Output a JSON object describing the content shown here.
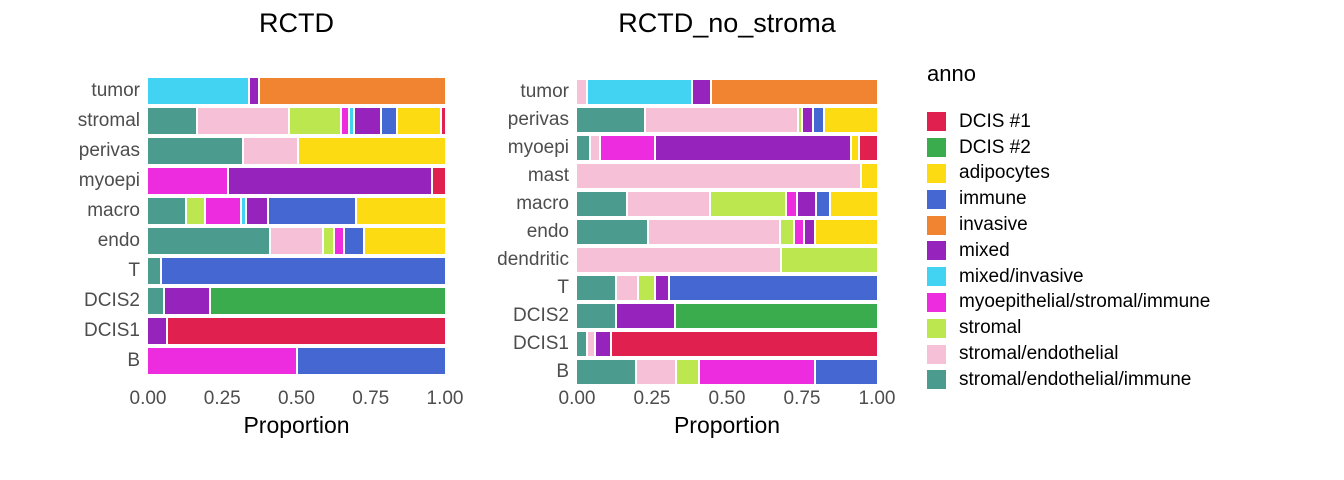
{
  "page": {
    "background": "#FFFFFF"
  },
  "colors": {
    "DCIS #1": "#E0214F",
    "DCIS #2": "#3BAC4D",
    "adipocytes": "#FDDB13",
    "immune": "#4467D2",
    "invasive": "#F18431",
    "mixed": "#9623BC",
    "mixed/invasive": "#43D3F2",
    "myoepithelial/stromal/immune": "#ED2CE0",
    "stromal": "#BCE74E",
    "stromal/endothelial": "#F6C1D6",
    "stromal/endothelial/immune": "#4C9B8F"
  },
  "legend": {
    "title": "anno",
    "items": [
      {
        "label": "DCIS #1",
        "color": "#E0214F"
      },
      {
        "label": "DCIS #2",
        "color": "#3BAC4D"
      },
      {
        "label": "adipocytes",
        "color": "#FDDB13"
      },
      {
        "label": "immune",
        "color": "#4467D2"
      },
      {
        "label": "invasive",
        "color": "#F18431"
      },
      {
        "label": "mixed",
        "color": "#9623BC"
      },
      {
        "label": "mixed/invasive",
        "color": "#43D3F2"
      },
      {
        "label": "myoepithelial/stromal/immune",
        "color": "#ED2CE0"
      },
      {
        "label": "stromal",
        "color": "#BCE74E"
      },
      {
        "label": "stromal/endothelial",
        "color": "#F6C1D6"
      },
      {
        "label": "stromal/endothelial/immune",
        "color": "#4C9B8F"
      }
    ]
  },
  "chart_data": [
    {
      "type": "stacked_bar_horizontal",
      "title": "RCTD",
      "xlabel": "Proportion",
      "xlim": [
        0,
        1
      ],
      "x_tick_values": [
        0,
        0.25,
        0.5,
        0.75,
        1
      ],
      "x_tick_labels": [
        "0.00",
        "0.25",
        "0.50",
        "0.75",
        "1.00"
      ],
      "categories": [
        "tumor",
        "stromal",
        "perivas",
        "myoepi",
        "macro",
        "endo",
        "T",
        "DCIS2",
        "DCIS1",
        "B"
      ],
      "rows": [
        {
          "label": "tumor",
          "segments": [
            {
              "anno": "mixed/invasive",
              "value": 0.34
            },
            {
              "anno": "mixed",
              "value": 0.03
            },
            {
              "anno": "invasive",
              "value": 0.63
            }
          ]
        },
        {
          "label": "stromal",
          "segments": [
            {
              "anno": "stromal/endothelial/immune",
              "value": 0.17
            },
            {
              "anno": "stromal/endothelial",
              "value": 0.32
            },
            {
              "anno": "stromal",
              "value": 0.18
            },
            {
              "anno": "myoepithelial/stromal/immune",
              "value": 0.02
            },
            {
              "anno": "mixed/invasive",
              "value": 0.01
            },
            {
              "anno": "mixed",
              "value": 0.09
            },
            {
              "anno": "immune",
              "value": 0.05
            },
            {
              "anno": "adipocytes",
              "value": 0.15
            },
            {
              "anno": "DCIS #1",
              "value": 0.01
            }
          ]
        },
        {
          "label": "perivas",
          "segments": [
            {
              "anno": "stromal/endothelial/immune",
              "value": 0.32
            },
            {
              "anno": "stromal/endothelial",
              "value": 0.18
            },
            {
              "anno": "adipocytes",
              "value": 0.5
            }
          ]
        },
        {
          "label": "myoepi",
          "segments": [
            {
              "anno": "myoepithelial/stromal/immune",
              "value": 0.27
            },
            {
              "anno": "mixed",
              "value": 0.69
            },
            {
              "anno": "DCIS #1",
              "value": 0.04
            }
          ]
        },
        {
          "label": "macro",
          "segments": [
            {
              "anno": "stromal/endothelial/immune",
              "value": 0.13
            },
            {
              "anno": "stromal",
              "value": 0.06
            },
            {
              "anno": "myoepithelial/stromal/immune",
              "value": 0.12
            },
            {
              "anno": "mixed/invasive",
              "value": 0.01
            },
            {
              "anno": "mixed",
              "value": 0.07
            },
            {
              "anno": "immune",
              "value": 0.3
            },
            {
              "anno": "adipocytes",
              "value": 0.31
            }
          ]
        },
        {
          "label": "endo",
          "segments": [
            {
              "anno": "stromal/endothelial/immune",
              "value": 0.42
            },
            {
              "anno": "stromal/endothelial",
              "value": 0.18
            },
            {
              "anno": "stromal",
              "value": 0.03
            },
            {
              "anno": "myoepithelial/stromal/immune",
              "value": 0.03
            },
            {
              "anno": "immune",
              "value": 0.06
            },
            {
              "anno": "adipocytes",
              "value": 0.28
            }
          ]
        },
        {
          "label": "T",
          "segments": [
            {
              "anno": "stromal/endothelial/immune",
              "value": 0.04
            },
            {
              "anno": "immune",
              "value": 0.96
            }
          ]
        },
        {
          "label": "DCIS2",
          "segments": [
            {
              "anno": "stromal/endothelial/immune",
              "value": 0.05
            },
            {
              "anno": "mixed",
              "value": 0.15
            },
            {
              "anno": "DCIS #2",
              "value": 0.8
            }
          ]
        },
        {
          "label": "DCIS1",
          "segments": [
            {
              "anno": "mixed",
              "value": 0.06
            },
            {
              "anno": "DCIS #1",
              "value": 0.94
            }
          ]
        },
        {
          "label": "B",
          "segments": [
            {
              "anno": "myoepithelial/stromal/immune",
              "value": 0.5
            },
            {
              "anno": "immune",
              "value": 0.5
            }
          ]
        }
      ]
    },
    {
      "type": "stacked_bar_horizontal",
      "title": "RCTD_no_stroma",
      "xlabel": "Proportion",
      "xlim": [
        0,
        1
      ],
      "x_tick_values": [
        0,
        0.25,
        0.5,
        0.75,
        1
      ],
      "x_tick_labels": [
        "0.00",
        "0.25",
        "0.50",
        "0.75",
        "1.00"
      ],
      "categories": [
        "tumor",
        "perivas",
        "myoepi",
        "mast",
        "macro",
        "endo",
        "dendritic",
        "T",
        "DCIS2",
        "DCIS1",
        "B"
      ],
      "rows": [
        {
          "label": "tumor",
          "segments": [
            {
              "anno": "stromal/endothelial",
              "value": 0.03
            },
            {
              "anno": "mixed/invasive",
              "value": 0.35
            },
            {
              "anno": "mixed",
              "value": 0.06
            },
            {
              "anno": "invasive",
              "value": 0.56
            }
          ]
        },
        {
          "label": "perivas",
          "segments": [
            {
              "anno": "stromal/endothelial/immune",
              "value": 0.23
            },
            {
              "anno": "stromal/endothelial",
              "value": 0.52
            },
            {
              "anno": "stromal",
              "value": 0.01
            },
            {
              "anno": "mixed",
              "value": 0.03
            },
            {
              "anno": "immune",
              "value": 0.03
            },
            {
              "anno": "adipocytes",
              "value": 0.18
            }
          ]
        },
        {
          "label": "myoepi",
          "segments": [
            {
              "anno": "stromal/endothelial/immune",
              "value": 0.04
            },
            {
              "anno": "stromal/endothelial",
              "value": 0.03
            },
            {
              "anno": "myoepithelial/stromal/immune",
              "value": 0.18
            },
            {
              "anno": "mixed",
              "value": 0.67
            },
            {
              "anno": "adipocytes",
              "value": 0.02
            },
            {
              "anno": "DCIS #1",
              "value": 0.06
            }
          ]
        },
        {
          "label": "mast",
          "segments": [
            {
              "anno": "stromal/endothelial",
              "value": 0.95
            },
            {
              "anno": "adipocytes",
              "value": 0.05
            }
          ]
        },
        {
          "label": "macro",
          "segments": [
            {
              "anno": "stromal/endothelial/immune",
              "value": 0.17
            },
            {
              "anno": "stromal/endothelial",
              "value": 0.28
            },
            {
              "anno": "stromal",
              "value": 0.26
            },
            {
              "anno": "myoepithelial/stromal/immune",
              "value": 0.03
            },
            {
              "anno": "mixed",
              "value": 0.06
            },
            {
              "anno": "immune",
              "value": 0.04
            },
            {
              "anno": "adipocytes",
              "value": 0.16
            }
          ]
        },
        {
          "label": "endo",
          "segments": [
            {
              "anno": "stromal/endothelial/immune",
              "value": 0.24
            },
            {
              "anno": "stromal/endothelial",
              "value": 0.45
            },
            {
              "anno": "stromal",
              "value": 0.04
            },
            {
              "anno": "myoepithelial/stromal/immune",
              "value": 0.03
            },
            {
              "anno": "mixed",
              "value": 0.03
            },
            {
              "anno": "adipocytes",
              "value": 0.21
            }
          ]
        },
        {
          "label": "dendritic",
          "segments": [
            {
              "anno": "stromal/endothelial",
              "value": 0.68
            },
            {
              "anno": "stromal",
              "value": 0.32
            }
          ]
        },
        {
          "label": "T",
          "segments": [
            {
              "anno": "stromal/endothelial/immune",
              "value": 0.13
            },
            {
              "anno": "stromal/endothelial",
              "value": 0.07
            },
            {
              "anno": "stromal",
              "value": 0.05
            },
            {
              "anno": "mixed",
              "value": 0.04
            },
            {
              "anno": "immune",
              "value": 0.71
            }
          ]
        },
        {
          "label": "DCIS2",
          "segments": [
            {
              "anno": "stromal/endothelial/immune",
              "value": 0.13
            },
            {
              "anno": "mixed",
              "value": 0.19
            },
            {
              "anno": "DCIS #2",
              "value": 0.68
            }
          ]
        },
        {
          "label": "DCIS1",
          "segments": [
            {
              "anno": "stromal/endothelial/immune",
              "value": 0.03
            },
            {
              "anno": "stromal/endothelial",
              "value": 0.02
            },
            {
              "anno": "mixed",
              "value": 0.05
            },
            {
              "anno": "DCIS #1",
              "value": 0.9
            }
          ]
        },
        {
          "label": "B",
          "segments": [
            {
              "anno": "stromal/endothelial/immune",
              "value": 0.2
            },
            {
              "anno": "stromal/endothelial",
              "value": 0.13
            },
            {
              "anno": "stromal",
              "value": 0.07
            },
            {
              "anno": "myoepithelial/stromal/immune",
              "value": 0.39
            },
            {
              "anno": "immune",
              "value": 0.21
            }
          ]
        }
      ]
    }
  ]
}
